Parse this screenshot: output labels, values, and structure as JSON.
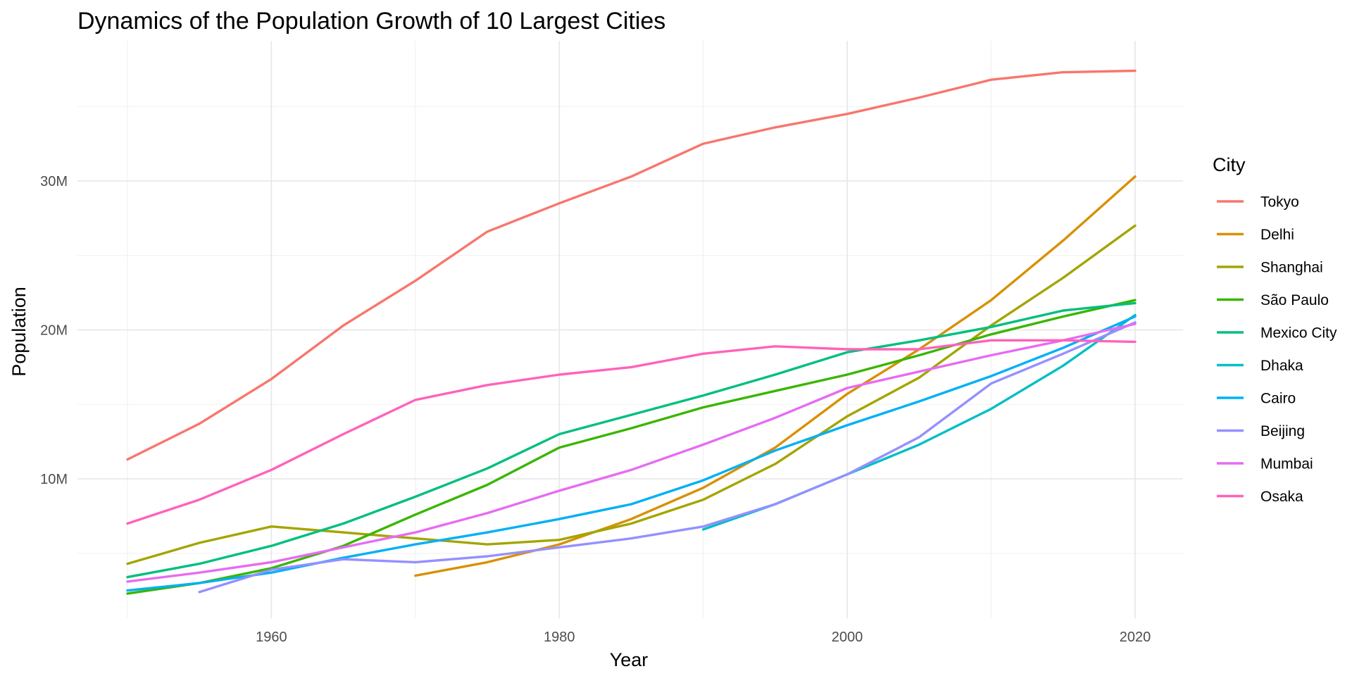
{
  "chart_data": {
    "type": "line",
    "title": "Dynamics of the Population Growth of 10 Largest Cities",
    "xlabel": "Year",
    "ylabel": "Population",
    "xlim": [
      1950,
      2020
    ],
    "ylim": [
      1.8,
      37.6
    ],
    "x_ticks": [
      1960,
      1980,
      2000,
      2020
    ],
    "x_tick_labels": [
      "1960",
      "1980",
      "2000",
      "2020"
    ],
    "y_ticks": [
      10,
      20,
      30
    ],
    "y_tick_labels": [
      "10M",
      "20M",
      "30M"
    ],
    "y_units": "millions",
    "grid": true,
    "legend_title": "City",
    "legend_position": "right",
    "series": [
      {
        "name": "Tokyo",
        "color": "#F8766D",
        "points": [
          [
            1950,
            11.3
          ],
          [
            1955,
            13.7
          ],
          [
            1960,
            16.7
          ],
          [
            1965,
            20.3
          ],
          [
            1970,
            23.3
          ],
          [
            1975,
            26.6
          ],
          [
            1980,
            28.5
          ],
          [
            1985,
            30.3
          ],
          [
            1990,
            32.5
          ],
          [
            1995,
            33.6
          ],
          [
            2000,
            34.5
          ],
          [
            2005,
            35.6
          ],
          [
            2010,
            36.8
          ],
          [
            2015,
            37.3
          ],
          [
            2020,
            37.4
          ]
        ]
      },
      {
        "name": "Delhi",
        "color": "#D89000",
        "points": [
          [
            1970,
            3.5
          ],
          [
            1975,
            4.4
          ],
          [
            1980,
            5.6
          ],
          [
            1985,
            7.3
          ],
          [
            1990,
            9.4
          ],
          [
            1995,
            12.1
          ],
          [
            2000,
            15.7
          ],
          [
            2005,
            18.7
          ],
          [
            2010,
            22.0
          ],
          [
            2015,
            26.0
          ],
          [
            2020,
            30.3
          ]
        ]
      },
      {
        "name": "Shanghai",
        "color": "#A3A500",
        "points": [
          [
            1950,
            4.3
          ],
          [
            1955,
            5.7
          ],
          [
            1960,
            6.8
          ],
          [
            1965,
            6.4
          ],
          [
            1970,
            6.0
          ],
          [
            1975,
            5.6
          ],
          [
            1980,
            5.9
          ],
          [
            1985,
            7.0
          ],
          [
            1990,
            8.6
          ],
          [
            1995,
            11.0
          ],
          [
            2000,
            14.2
          ],
          [
            2005,
            16.8
          ],
          [
            2010,
            20.3
          ],
          [
            2015,
            23.5
          ],
          [
            2020,
            27.0
          ]
        ]
      },
      {
        "name": "São Paulo",
        "color": "#39B600",
        "points": [
          [
            1950,
            2.3
          ],
          [
            1955,
            3.0
          ],
          [
            1960,
            4.0
          ],
          [
            1965,
            5.5
          ],
          [
            1970,
            7.6
          ],
          [
            1975,
            9.6
          ],
          [
            1980,
            12.1
          ],
          [
            1985,
            13.4
          ],
          [
            1990,
            14.8
          ],
          [
            1995,
            15.9
          ],
          [
            2000,
            17.0
          ],
          [
            2005,
            18.3
          ],
          [
            2010,
            19.7
          ],
          [
            2015,
            20.9
          ],
          [
            2020,
            22.0
          ]
        ]
      },
      {
        "name": "Mexico City",
        "color": "#00BF7D",
        "points": [
          [
            1950,
            3.4
          ],
          [
            1955,
            4.3
          ],
          [
            1960,
            5.5
          ],
          [
            1965,
            7.0
          ],
          [
            1970,
            8.8
          ],
          [
            1975,
            10.7
          ],
          [
            1980,
            13.0
          ],
          [
            1985,
            14.3
          ],
          [
            1990,
            15.6
          ],
          [
            1995,
            17.0
          ],
          [
            2000,
            18.5
          ],
          [
            2005,
            19.3
          ],
          [
            2010,
            20.2
          ],
          [
            2015,
            21.3
          ],
          [
            2020,
            21.8
          ]
        ]
      },
      {
        "name": "Dhaka",
        "color": "#00BFC4",
        "points": [
          [
            1990,
            6.6
          ],
          [
            1995,
            8.3
          ],
          [
            2000,
            10.3
          ],
          [
            2005,
            12.3
          ],
          [
            2010,
            14.7
          ],
          [
            2015,
            17.6
          ],
          [
            2020,
            21.0
          ]
        ]
      },
      {
        "name": "Cairo",
        "color": "#00B0F6",
        "points": [
          [
            1950,
            2.5
          ],
          [
            1955,
            3.0
          ],
          [
            1960,
            3.7
          ],
          [
            1965,
            4.7
          ],
          [
            1970,
            5.6
          ],
          [
            1975,
            6.4
          ],
          [
            1980,
            7.3
          ],
          [
            1985,
            8.3
          ],
          [
            1990,
            9.9
          ],
          [
            1995,
            11.9
          ],
          [
            2000,
            13.6
          ],
          [
            2005,
            15.2
          ],
          [
            2010,
            16.9
          ],
          [
            2015,
            18.8
          ],
          [
            2020,
            20.9
          ]
        ]
      },
      {
        "name": "Beijing",
        "color": "#9590FF",
        "points": [
          [
            1955,
            2.4
          ],
          [
            1960,
            3.9
          ],
          [
            1965,
            4.6
          ],
          [
            1970,
            4.4
          ],
          [
            1975,
            4.8
          ],
          [
            1980,
            5.4
          ],
          [
            1985,
            6.0
          ],
          [
            1990,
            6.8
          ],
          [
            1995,
            8.3
          ],
          [
            2000,
            10.3
          ],
          [
            2005,
            12.8
          ],
          [
            2010,
            16.4
          ],
          [
            2015,
            18.4
          ],
          [
            2020,
            20.5
          ]
        ]
      },
      {
        "name": "Mumbai",
        "color": "#E76BF3",
        "points": [
          [
            1950,
            3.1
          ],
          [
            1955,
            3.7
          ],
          [
            1960,
            4.4
          ],
          [
            1965,
            5.4
          ],
          [
            1970,
            6.4
          ],
          [
            1975,
            7.7
          ],
          [
            1980,
            9.2
          ],
          [
            1985,
            10.6
          ],
          [
            1990,
            12.3
          ],
          [
            1995,
            14.1
          ],
          [
            2000,
            16.1
          ],
          [
            2005,
            17.2
          ],
          [
            2010,
            18.3
          ],
          [
            2015,
            19.3
          ],
          [
            2020,
            20.4
          ]
        ]
      },
      {
        "name": "Osaka",
        "color": "#FF62BC",
        "points": [
          [
            1950,
            7.0
          ],
          [
            1955,
            8.6
          ],
          [
            1960,
            10.6
          ],
          [
            1965,
            13.0
          ],
          [
            1970,
            15.3
          ],
          [
            1975,
            16.3
          ],
          [
            1980,
            17.0
          ],
          [
            1985,
            17.5
          ],
          [
            1990,
            18.4
          ],
          [
            1995,
            18.9
          ],
          [
            2000,
            18.7
          ],
          [
            2005,
            18.7
          ],
          [
            2010,
            19.3
          ],
          [
            2015,
            19.3
          ],
          [
            2020,
            19.2
          ]
        ]
      }
    ]
  }
}
